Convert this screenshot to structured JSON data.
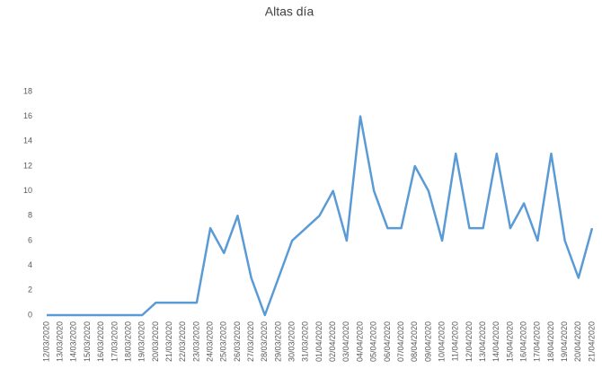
{
  "chart_data": {
    "type": "line",
    "title": "Altas día",
    "categories": [
      "12/03/2020",
      "13/03/2020",
      "14/03/2020",
      "15/03/2020",
      "16/03/2020",
      "17/03/2020",
      "18/03/2020",
      "19/03/2020",
      "20/03/2020",
      "21/03/2020",
      "22/03/2020",
      "23/03/2020",
      "24/03/2020",
      "25/03/2020",
      "26/03/2020",
      "27/03/2020",
      "28/03/2020",
      "29/03/2020",
      "30/03/2020",
      "31/03/2020",
      "01/04/2020",
      "02/04/2020",
      "03/04/2020",
      "04/04/2020",
      "05/04/2020",
      "06/04/2020",
      "07/04/2020",
      "08/04/2020",
      "09/04/2020",
      "10/04/2020",
      "11/04/2020",
      "12/04/2020",
      "13/04/2020",
      "14/04/2020",
      "15/04/2020",
      "16/04/2020",
      "17/04/2020",
      "18/04/2020",
      "19/04/2020",
      "20/04/2020",
      "21/04/2020"
    ],
    "values": [
      0,
      0,
      0,
      0,
      0,
      0,
      0,
      0,
      1,
      1,
      1,
      1,
      7,
      5,
      8,
      3,
      0,
      3,
      6,
      7,
      8,
      10,
      6,
      16,
      10,
      7,
      7,
      12,
      10,
      6,
      13,
      7,
      7,
      13,
      7,
      9,
      6,
      13,
      6,
      3,
      7
    ],
    "color": "#5b9bd5",
    "ylim": [
      0,
      18
    ],
    "yticks": [
      0,
      2,
      4,
      6,
      8,
      10,
      12,
      14,
      16,
      18
    ],
    "grid": false
  }
}
